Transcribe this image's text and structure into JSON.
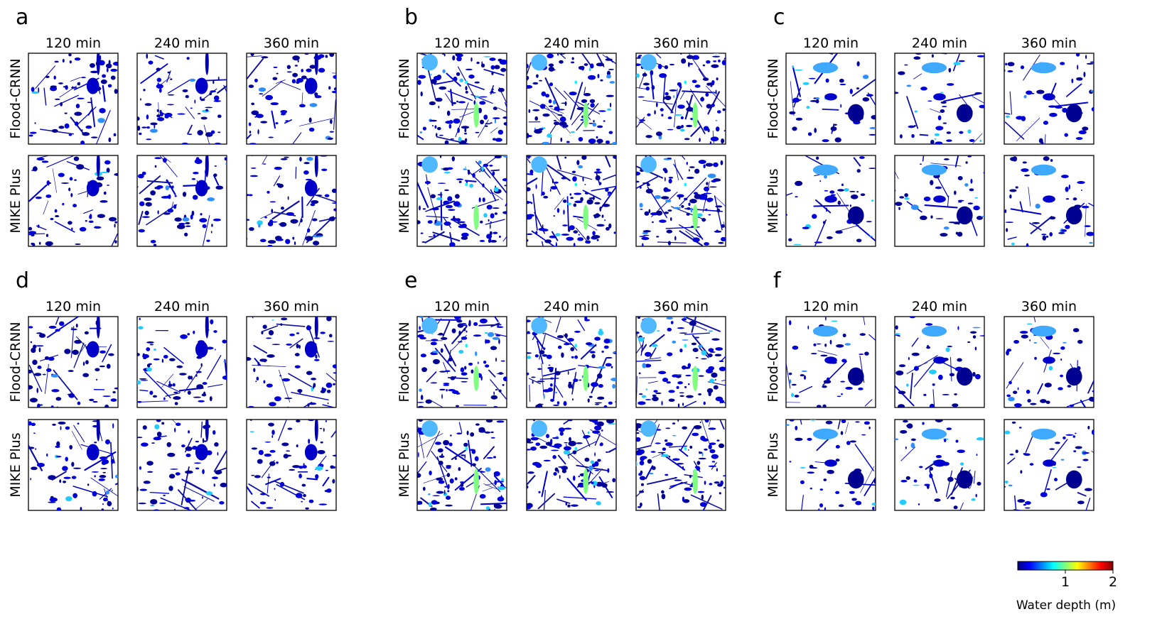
{
  "panels": [
    {
      "letter": "a",
      "extent": "a"
    },
    {
      "letter": "b",
      "extent": "b"
    },
    {
      "letter": "c",
      "extent": "c"
    },
    {
      "letter": "d",
      "extent": "a"
    },
    {
      "letter": "e",
      "extent": "b"
    },
    {
      "letter": "f",
      "extent": "c"
    }
  ],
  "time_labels": [
    "120 min",
    "240 min",
    "360 min"
  ],
  "model_labels": [
    "Flood-CRNN",
    "MIKE Plus"
  ],
  "colorbar": {
    "label": "Water depth (m)",
    "ticks": [
      "1",
      "2"
    ],
    "tick_values": [
      1,
      2
    ],
    "range": [
      0,
      2
    ],
    "colormap": "jet",
    "colors": [
      "#00007f",
      "#0000ff",
      "#007fff",
      "#00ffff",
      "#7fff7f",
      "#ffff00",
      "#ff7f00",
      "#ff0000",
      "#7f0000"
    ]
  }
}
